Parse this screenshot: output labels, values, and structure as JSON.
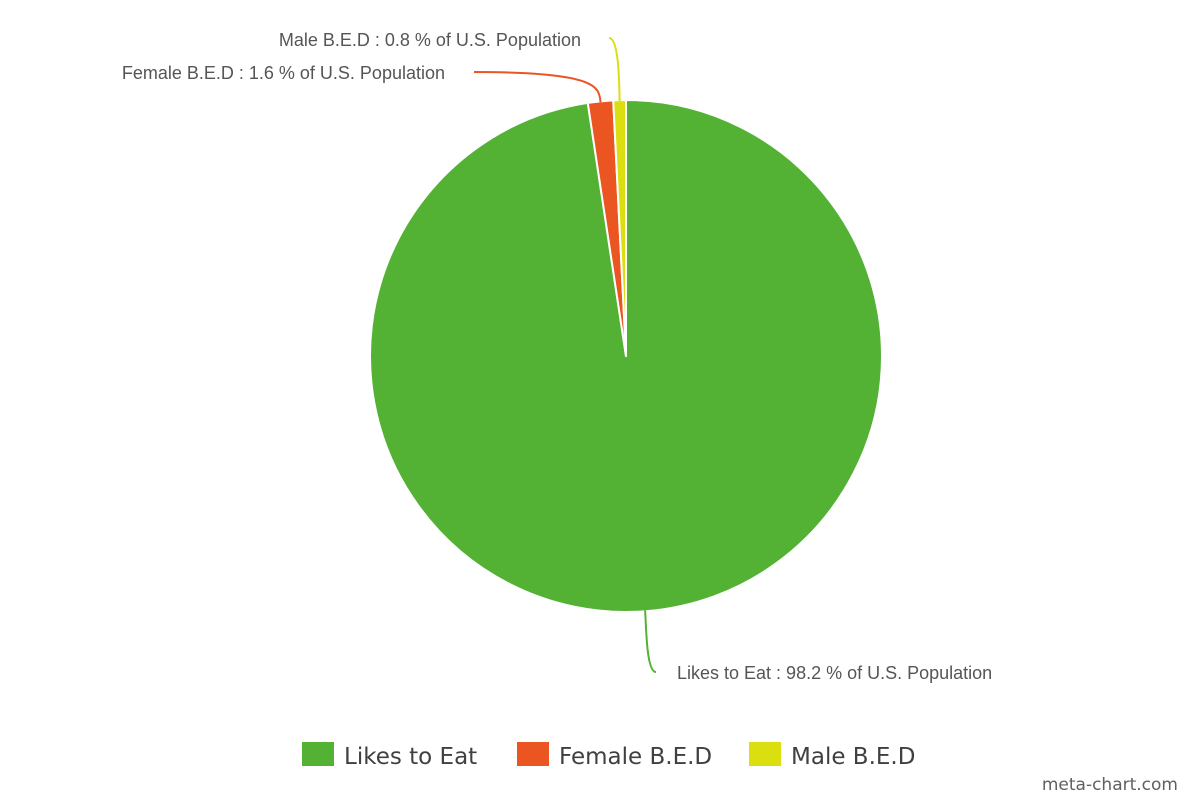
{
  "chart_data": {
    "type": "pie",
    "series": [
      {
        "name": "Likes to Eat",
        "value": 98.2,
        "color": "#53b233",
        "label": "Likes to Eat : 98.2 % of U.S. Population"
      },
      {
        "name": "Female B.E.D",
        "value": 1.6,
        "color": "#ea5522",
        "label": "Female B.E.D : 1.6 % of U.S. Population"
      },
      {
        "name": "Male B.E.D",
        "value": 0.8,
        "color": "#dbdf0f",
        "label": "Male B.E.D : 0.8 % of U.S. Population"
      }
    ],
    "unit": "% of U.S. Population",
    "legend_position": "bottom"
  },
  "watermark": "meta-chart.com"
}
